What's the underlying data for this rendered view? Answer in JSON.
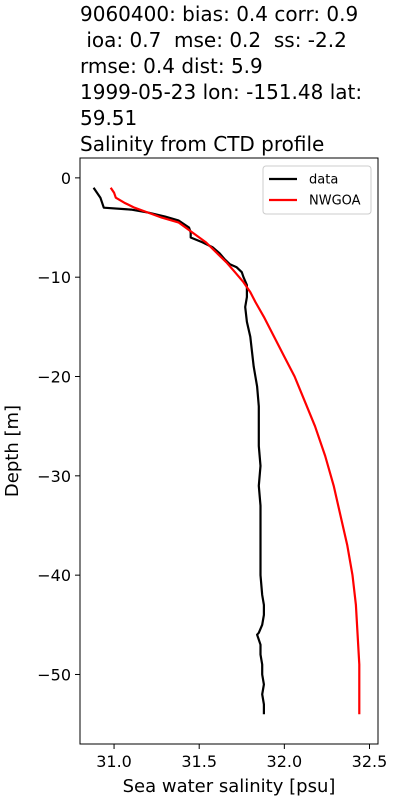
{
  "chart_data": {
    "type": "line",
    "title_lines": [
      "9060400: bias: 0.4  corr: 0.9",
      " ioa: 0.7  mse: 0.2  ss: -2.2",
      "rmse: 0.4  dist: 5.9",
      "1999-05-23 lon: -151.48 lat:",
      "59.51",
      "Salinity from CTD profile"
    ],
    "xlabel": "Sea water salinity [psu]",
    "ylabel": "Depth [m]",
    "xlim": [
      30.8,
      32.55
    ],
    "ylim": [
      -57,
      2
    ],
    "xticks": [
      31.0,
      31.5,
      32.0,
      32.5
    ],
    "xtick_labels": [
      "31.0",
      "31.5",
      "32.0",
      "32.5"
    ],
    "yticks": [
      0,
      -10,
      -20,
      -30,
      -40,
      -50
    ],
    "ytick_labels": [
      "0",
      "−10",
      "−20",
      "−30",
      "−40",
      "−50"
    ],
    "grid": false,
    "legend_position": "top-right",
    "series": [
      {
        "name": "data",
        "color": "#000000",
        "points": [
          [
            30.88,
            -1.0
          ],
          [
            30.92,
            -2.0
          ],
          [
            30.93,
            -2.5
          ],
          [
            30.94,
            -3.0
          ],
          [
            31.1,
            -3.2
          ],
          [
            31.2,
            -3.5
          ],
          [
            31.3,
            -3.9
          ],
          [
            31.38,
            -4.3
          ],
          [
            31.44,
            -5.0
          ],
          [
            31.45,
            -5.5
          ],
          [
            31.45,
            -6.0
          ],
          [
            31.52,
            -6.5
          ],
          [
            31.58,
            -7.0
          ],
          [
            31.62,
            -7.6
          ],
          [
            31.65,
            -8.2
          ],
          [
            31.68,
            -8.7
          ],
          [
            31.72,
            -9.0
          ],
          [
            31.75,
            -9.5
          ],
          [
            31.76,
            -10.0
          ],
          [
            31.78,
            -10.8
          ],
          [
            31.78,
            -11.5
          ],
          [
            31.78,
            -12.0
          ],
          [
            31.77,
            -13.0
          ],
          [
            31.78,
            -14.5
          ],
          [
            31.8,
            -16.0
          ],
          [
            31.81,
            -17.5
          ],
          [
            31.82,
            -19.0
          ],
          [
            31.83,
            -20.0
          ],
          [
            31.84,
            -21.0
          ],
          [
            31.85,
            -23.0
          ],
          [
            31.85,
            -25.0
          ],
          [
            31.85,
            -27.0
          ],
          [
            31.86,
            -29.0
          ],
          [
            31.85,
            -31.0
          ],
          [
            31.86,
            -33.0
          ],
          [
            31.86,
            -35.0
          ],
          [
            31.86,
            -37.0
          ],
          [
            31.86,
            -39.0
          ],
          [
            31.86,
            -40.0
          ],
          [
            31.87,
            -42.0
          ],
          [
            31.88,
            -43.0
          ],
          [
            31.88,
            -44.0
          ],
          [
            31.87,
            -45.0
          ],
          [
            31.85,
            -45.8
          ],
          [
            31.84,
            -46.0
          ],
          [
            31.86,
            -47.0
          ],
          [
            31.86,
            -48.0
          ],
          [
            31.87,
            -49.0
          ],
          [
            31.87,
            -50.0
          ],
          [
            31.88,
            -51.0
          ],
          [
            31.87,
            -52.0
          ],
          [
            31.88,
            -53.0
          ],
          [
            31.88,
            -54.0
          ]
        ]
      },
      {
        "name": "NWGOA",
        "color": "#ff0000",
        "points": [
          [
            30.98,
            -1.0
          ],
          [
            31.0,
            -1.5
          ],
          [
            31.01,
            -2.0
          ],
          [
            31.06,
            -2.5
          ],
          [
            31.12,
            -3.0
          ],
          [
            31.2,
            -3.5
          ],
          [
            31.28,
            -4.0
          ],
          [
            31.38,
            -4.5
          ],
          [
            31.46,
            -5.5
          ],
          [
            31.54,
            -6.5
          ],
          [
            31.6,
            -7.5
          ],
          [
            31.66,
            -8.5
          ],
          [
            31.71,
            -9.5
          ],
          [
            31.76,
            -10.5
          ],
          [
            31.8,
            -11.5
          ],
          [
            31.83,
            -12.5
          ],
          [
            31.88,
            -14.0
          ],
          [
            31.94,
            -16.0
          ],
          [
            32.0,
            -18.0
          ],
          [
            32.06,
            -20.0
          ],
          [
            32.12,
            -22.5
          ],
          [
            32.18,
            -25.0
          ],
          [
            32.24,
            -28.0
          ],
          [
            32.29,
            -31.0
          ],
          [
            32.33,
            -34.0
          ],
          [
            32.37,
            -37.0
          ],
          [
            32.4,
            -40.0
          ],
          [
            32.42,
            -43.0
          ],
          [
            32.43,
            -46.0
          ],
          [
            32.44,
            -49.0
          ],
          [
            32.44,
            -52.0
          ],
          [
            32.44,
            -54.0
          ]
        ]
      }
    ]
  }
}
